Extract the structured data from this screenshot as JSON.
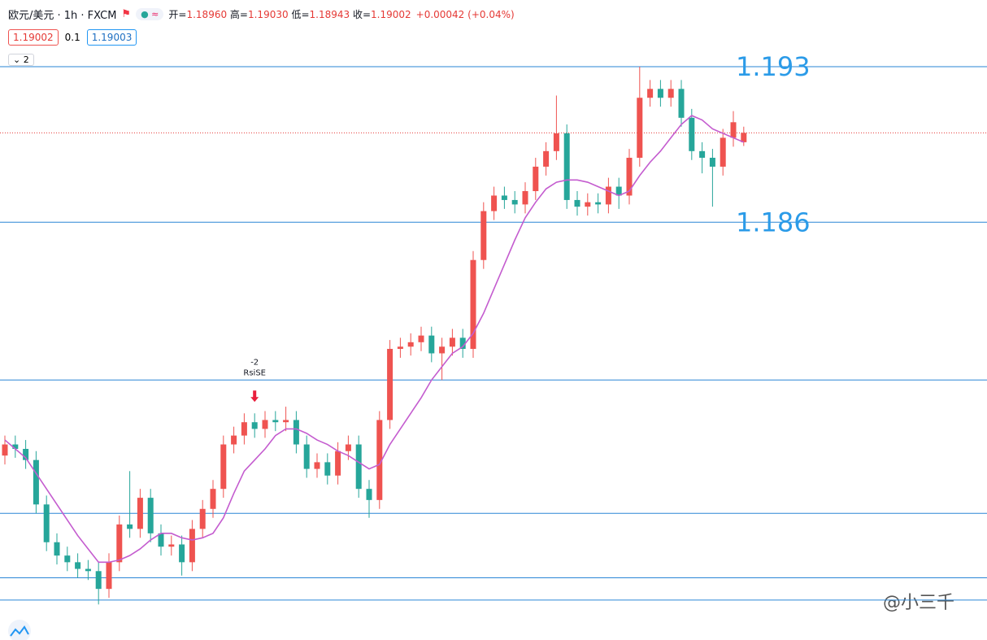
{
  "header": {
    "symbol": "欧元/美元 · 1h · FXCM",
    "ohlc": [
      {
        "label": "开=",
        "value": "1.18960"
      },
      {
        "label": "高=",
        "value": "1.19030"
      },
      {
        "label": "低=",
        "value": "1.18943"
      },
      {
        "label": "收=",
        "value": "1.19002"
      }
    ],
    "change": "+0.00042 (+0.04%)",
    "sell": "1.19002",
    "spread": "0.1",
    "buy": "1.19003",
    "indicators": "2"
  },
  "chart_data": {
    "type": "candlestick",
    "ylim": [
      1.1672,
      1.196
    ],
    "up_color": "#ef5350",
    "down_color": "#26a69a",
    "open": [
      1.1755,
      1.176,
      1.1758,
      1.1753,
      1.1733,
      1.1716,
      1.171,
      1.1707,
      1.1704,
      1.1703,
      1.1695,
      1.1707,
      1.1724,
      1.1722,
      1.1736,
      1.172,
      1.1714,
      1.1715,
      1.1707,
      1.1722,
      1.1731,
      1.174,
      1.176,
      1.1764,
      1.177,
      1.1767,
      1.1771,
      1.177,
      1.1771,
      1.176,
      1.1749,
      1.1752,
      1.1746,
      1.1757,
      1.176,
      1.174,
      1.1735,
      1.1771,
      1.1803,
      1.1804,
      1.1806,
      1.1809,
      1.1801,
      1.1804,
      1.1808,
      1.1803,
      1.1843,
      1.1865,
      1.1872,
      1.187,
      1.1868,
      1.1874,
      1.1885,
      1.1892,
      1.19,
      1.187,
      1.1867,
      1.1869,
      1.1868,
      1.1876,
      1.1872,
      1.1889,
      1.1916,
      1.192,
      1.1916,
      1.192,
      1.1907,
      1.1892,
      1.1889,
      1.1885,
      1.1898,
      1.1896
    ],
    "high": [
      1.1764,
      1.1764,
      1.1762,
      1.1757,
      1.1737,
      1.172,
      1.1714,
      1.1711,
      1.1708,
      1.1707,
      1.1711,
      1.1728,
      1.1748,
      1.174,
      1.174,
      1.1724,
      1.1719,
      1.1719,
      1.1726,
      1.1735,
      1.1744,
      1.1764,
      1.1768,
      1.1774,
      1.1774,
      1.1775,
      1.1775,
      1.1777,
      1.1775,
      1.1764,
      1.1756,
      1.1756,
      1.1761,
      1.1764,
      1.1764,
      1.1744,
      1.1775,
      1.1807,
      1.1808,
      1.181,
      1.1813,
      1.1813,
      1.1808,
      1.1812,
      1.1812,
      1.1847,
      1.1869,
      1.1876,
      1.1876,
      1.1874,
      1.1878,
      1.1889,
      1.1896,
      1.1917,
      1.1904,
      1.1874,
      1.1873,
      1.1873,
      1.188,
      1.188,
      1.1893,
      1.193,
      1.1924,
      1.1924,
      1.1924,
      1.1924,
      1.1911,
      1.1896,
      1.1893,
      1.1902,
      1.191,
      1.1903
    ],
    "low": [
      1.1751,
      1.1754,
      1.1749,
      1.1729,
      1.1712,
      1.1706,
      1.1703,
      1.17,
      1.1699,
      1.1688,
      1.1691,
      1.1703,
      1.1718,
      1.1718,
      1.1716,
      1.171,
      1.171,
      1.1701,
      1.1703,
      1.1718,
      1.1727,
      1.1736,
      1.1756,
      1.176,
      1.1763,
      1.1763,
      1.1766,
      1.1766,
      1.1756,
      1.1745,
      1.1745,
      1.1742,
      1.1742,
      1.1753,
      1.1736,
      1.1727,
      1.1731,
      1.1767,
      1.1799,
      1.18,
      1.1802,
      1.1797,
      1.1789,
      1.18,
      1.1799,
      1.1799,
      1.1839,
      1.1861,
      1.1866,
      1.1864,
      1.1864,
      1.187,
      1.1881,
      1.1888,
      1.1866,
      1.1863,
      1.1863,
      1.1864,
      1.1864,
      1.1866,
      1.1868,
      1.1885,
      1.1912,
      1.1912,
      1.1912,
      1.1903,
      1.1888,
      1.1882,
      1.1867,
      1.1881,
      1.1894,
      1.18943
    ],
    "close": [
      1.176,
      1.1758,
      1.1753,
      1.1733,
      1.1716,
      1.171,
      1.1707,
      1.1704,
      1.1703,
      1.1695,
      1.1707,
      1.1724,
      1.1722,
      1.1736,
      1.172,
      1.1714,
      1.1715,
      1.1707,
      1.1722,
      1.1731,
      1.174,
      1.176,
      1.1764,
      1.177,
      1.1767,
      1.1771,
      1.177,
      1.1771,
      1.176,
      1.1749,
      1.1752,
      1.1746,
      1.1757,
      1.176,
      1.174,
      1.1735,
      1.1771,
      1.1803,
      1.1804,
      1.1806,
      1.1809,
      1.1801,
      1.1804,
      1.1808,
      1.1803,
      1.1843,
      1.1865,
      1.1872,
      1.187,
      1.1868,
      1.1874,
      1.1885,
      1.1892,
      1.19,
      1.187,
      1.1867,
      1.1869,
      1.1868,
      1.1876,
      1.1872,
      1.1889,
      1.1916,
      1.192,
      1.1916,
      1.192,
      1.1907,
      1.1892,
      1.1889,
      1.1885,
      1.1898,
      1.1905,
      1.19002
    ],
    "ma": {
      "color": "#c45ccf",
      "values": [
        1.1762,
        1.1758,
        1.1754,
        1.1747,
        1.174,
        1.1733,
        1.1726,
        1.1719,
        1.1713,
        1.1707,
        1.1707,
        1.1708,
        1.171,
        1.1713,
        1.1717,
        1.172,
        1.172,
        1.1718,
        1.1717,
        1.1718,
        1.172,
        1.1727,
        1.1738,
        1.1748,
        1.1753,
        1.1758,
        1.1764,
        1.1767,
        1.1767,
        1.1765,
        1.1762,
        1.176,
        1.1757,
        1.1755,
        1.1752,
        1.1749,
        1.1751,
        1.176,
        1.1767,
        1.1774,
        1.1781,
        1.1789,
        1.1795,
        1.1801,
        1.1804,
        1.181,
        1.1819,
        1.183,
        1.1841,
        1.1852,
        1.1862,
        1.1869,
        1.1875,
        1.1878,
        1.1879,
        1.1879,
        1.1878,
        1.1876,
        1.1874,
        1.1872,
        1.1874,
        1.1881,
        1.1887,
        1.1892,
        1.1898,
        1.1904,
        1.1908,
        1.1906,
        1.1902,
        1.19,
        1.1898,
        1.1896
      ]
    },
    "price_line": {
      "value": 1.19002,
      "color": "#e53935"
    },
    "levels": [
      {
        "value": 1.193,
        "label": "1.193"
      },
      {
        "value": 1.186,
        "label": "1.186"
      },
      1.1789,
      1.1729,
      1.17,
      1.169
    ],
    "level_color": "#2a86d6",
    "signal": {
      "label": "-2",
      "text": "RsiSE"
    }
  },
  "watermark": "@小三千"
}
